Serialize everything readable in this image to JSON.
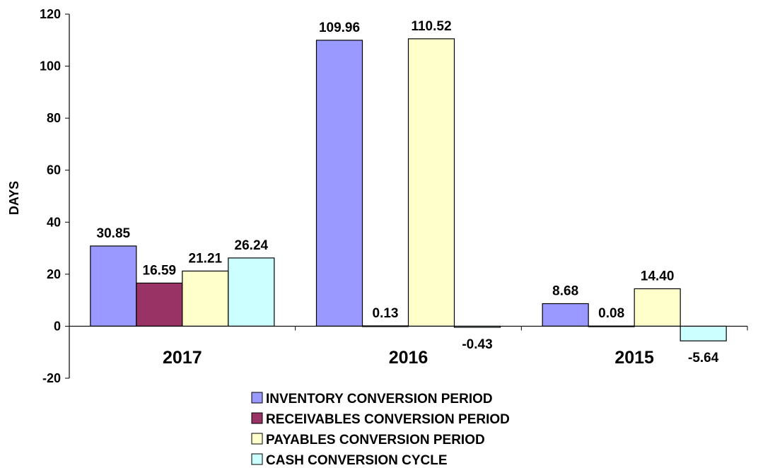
{
  "chart_data": {
    "type": "bar",
    "categories": [
      "2017",
      "2016",
      "2015"
    ],
    "series": [
      {
        "name": "INVENTORY CONVERSION PERIOD",
        "values": [
          30.85,
          109.96,
          8.68
        ],
        "labels": [
          "30.85",
          "109.96",
          "8.68"
        ],
        "color": "#9999FF"
      },
      {
        "name": "RECEIVABLES CONVERSION PERIOD",
        "values": [
          16.59,
          0.13,
          0.08
        ],
        "labels": [
          "16.59",
          "0.13",
          "0.08"
        ],
        "color": "#993366"
      },
      {
        "name": "PAYABLES CONVERSION PERIOD",
        "values": [
          21.21,
          110.52,
          14.4
        ],
        "labels": [
          "21.21",
          "110.52",
          "14.40"
        ],
        "color": "#FFFFCC"
      },
      {
        "name": "CASH CONVERSION CYCLE",
        "values": [
          26.24,
          -0.43,
          -5.64
        ],
        "labels": [
          "26.24",
          "-0.43",
          "-5.64"
        ],
        "color": "#CCFFFF"
      }
    ],
    "ylabel": "DAYS",
    "ylim": [
      -20,
      120
    ],
    "yticks": [
      "-20",
      "0",
      "20",
      "40",
      "60",
      "80",
      "100",
      "120"
    ],
    "grid": false,
    "legend_position": "bottom"
  }
}
